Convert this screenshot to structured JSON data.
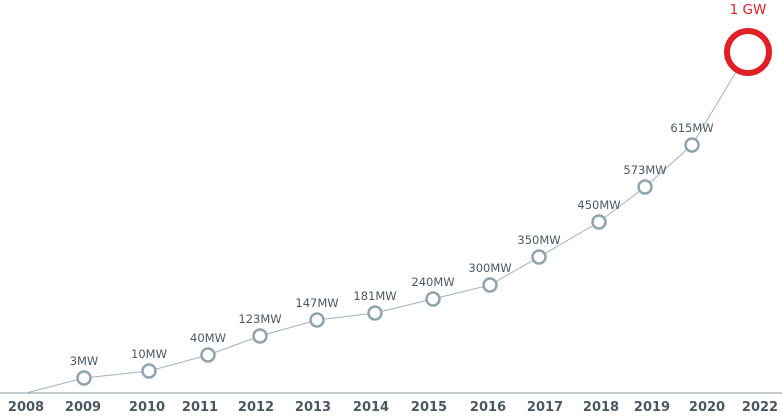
{
  "chart_data": {
    "type": "line",
    "x": [
      "2008",
      "2009",
      "2010",
      "2011",
      "2012",
      "2013",
      "2014",
      "2015",
      "2016",
      "2017",
      "2018",
      "2019",
      "2020",
      "2022"
    ],
    "series": [
      {
        "values": [
          0,
          3,
          10,
          40,
          123,
          147,
          181,
          240,
          300,
          350,
          450,
          573,
          615,
          1000
        ],
        "labels": [
          "",
          "3MW",
          "10MW",
          "40MW",
          "123MW",
          "147MW",
          "181MW",
          "240MW",
          "300MW",
          "350MW",
          "450MW",
          "573MW",
          "615MW",
          "1 GW"
        ]
      }
    ],
    "colors": {
      "line": "#9fb3bb",
      "marker": "#8fa4ad",
      "target": "#e02026",
      "axis": "#8a9aa5",
      "text": "#4a5866"
    },
    "grid": false,
    "legend": "none"
  }
}
